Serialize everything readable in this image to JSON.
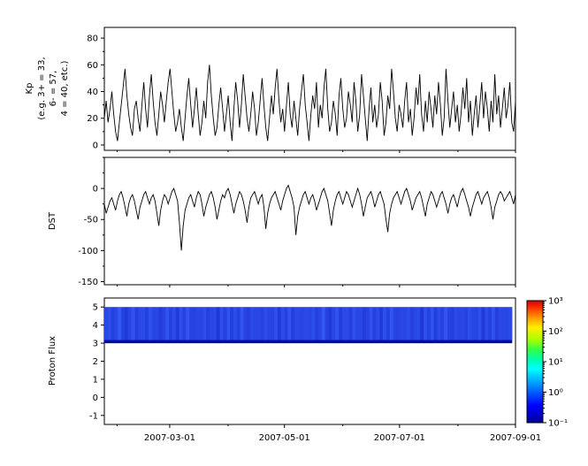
{
  "figure": {
    "background": "#ffffff",
    "axis_color": "#000000"
  },
  "x_axis": {
    "tick_labels": [
      "2007-03-01",
      "2007-05-01",
      "2007-07-01",
      "2007-09-01"
    ],
    "tick_positions": [
      0.159,
      0.438,
      0.718,
      1.0
    ],
    "minor_tick_positions": [
      0.031,
      0.301,
      0.58,
      0.86
    ],
    "range": [
      "2007-01-26",
      "2007-09-01"
    ]
  },
  "chart_data": [
    {
      "type": "line",
      "title": "",
      "ylabel": "Kp (e.g. 3+ = 33, 6- = 57, 4 = 40, etc.)",
      "ylabel_lines": [
        "Kp",
        "(e.g. 3+ = 33,",
        "6- = 57,",
        "4 = 40, etc.)"
      ],
      "ylim": [
        -4,
        88
      ],
      "yticks": [
        0,
        20,
        40,
        60,
        80
      ],
      "ytick_minor_step": 10,
      "line_color": "#000000",
      "grid": false,
      "values": [
        20,
        33,
        17,
        27,
        40,
        23,
        10,
        3,
        17,
        30,
        43,
        57,
        37,
        23,
        13,
        7,
        27,
        33,
        20,
        10,
        30,
        47,
        27,
        13,
        37,
        53,
        33,
        17,
        7,
        23,
        40,
        30,
        17,
        33,
        47,
        57,
        40,
        23,
        10,
        17,
        27,
        13,
        3,
        20,
        37,
        50,
        30,
        13,
        27,
        43,
        23,
        7,
        17,
        33,
        20,
        47,
        60,
        37,
        20,
        7,
        13,
        30,
        43,
        27,
        10,
        23,
        37,
        17,
        3,
        27,
        47,
        33,
        13,
        30,
        53,
        37,
        20,
        10,
        23,
        40,
        27,
        7,
        17,
        33,
        50,
        30,
        13,
        3,
        20,
        37,
        23,
        43,
        57,
        33,
        17,
        27,
        10,
        30,
        47,
        23,
        13,
        33,
        20,
        7,
        27,
        40,
        53,
        30,
        17,
        3,
        23,
        37,
        27,
        47,
        13,
        30,
        20,
        43,
        57,
        27,
        10,
        17,
        33,
        23,
        7,
        37,
        50,
        27,
        13,
        20,
        40,
        30,
        17,
        47,
        33,
        10,
        23,
        53,
        37,
        20,
        3,
        27,
        43,
        17,
        30,
        13,
        23,
        47,
        33,
        7,
        17,
        37,
        27,
        57,
        40,
        20,
        10,
        30,
        23,
        13,
        33,
        47,
        17,
        27,
        7,
        20,
        43,
        30,
        53,
        23,
        10,
        33,
        17,
        40,
        27,
        13,
        37,
        23,
        47,
        30,
        7,
        20,
        57,
        33,
        13,
        27,
        40,
        17,
        30,
        10,
        23,
        43,
        27,
        50,
        17,
        33,
        7,
        23,
        37,
        13,
        30,
        47,
        20,
        40,
        27,
        10,
        33,
        17,
        53,
        23,
        37,
        13,
        27,
        43,
        20,
        30,
        47,
        17,
        10,
        33
      ]
    },
    {
      "type": "line",
      "title": "",
      "ylabel": "DST",
      "ylim": [
        -155,
        50
      ],
      "yticks": [
        0,
        -50,
        -100,
        -150
      ],
      "ytick_minor_step": 25,
      "line_color": "#000000",
      "grid": false,
      "values": [
        -25,
        -40,
        -30,
        -20,
        -15,
        -25,
        -35,
        -20,
        -10,
        -5,
        -15,
        -30,
        -45,
        -25,
        -15,
        -10,
        -20,
        -35,
        -50,
        -30,
        -20,
        -10,
        -5,
        -15,
        -25,
        -15,
        -10,
        -20,
        -40,
        -60,
        -35,
        -20,
        -10,
        -15,
        -25,
        -15,
        -5,
        0,
        -10,
        -20,
        -55,
        -100,
        -60,
        -35,
        -25,
        -15,
        -10,
        -20,
        -30,
        -15,
        -5,
        -10,
        -25,
        -45,
        -30,
        -20,
        -10,
        -5,
        -15,
        -30,
        -50,
        -35,
        -20,
        -10,
        -15,
        -5,
        0,
        -10,
        -25,
        -40,
        -25,
        -15,
        -5,
        -10,
        -20,
        -35,
        -55,
        -30,
        -15,
        -10,
        -5,
        -15,
        -25,
        -15,
        -10,
        -30,
        -65,
        -40,
        -25,
        -15,
        -10,
        -5,
        -15,
        -25,
        -35,
        -20,
        -10,
        0,
        5,
        -5,
        -15,
        -30,
        -75,
        -45,
        -30,
        -20,
        -10,
        -5,
        -15,
        -25,
        -15,
        -10,
        -20,
        -35,
        -25,
        -15,
        -5,
        0,
        -10,
        -20,
        -40,
        -60,
        -35,
        -20,
        -10,
        -5,
        -15,
        -25,
        -15,
        -5,
        -10,
        -20,
        -30,
        -20,
        -10,
        0,
        -10,
        -25,
        -45,
        -30,
        -15,
        -10,
        -5,
        -15,
        -30,
        -20,
        -10,
        -5,
        -15,
        -25,
        -50,
        -70,
        -40,
        -25,
        -15,
        -10,
        -5,
        -15,
        -25,
        -15,
        -5,
        0,
        -10,
        -20,
        -35,
        -25,
        -15,
        -10,
        -5,
        -15,
        -30,
        -45,
        -25,
        -15,
        -5,
        -10,
        -20,
        -30,
        -20,
        -10,
        -5,
        -15,
        -25,
        -40,
        -25,
        -15,
        -10,
        -20,
        -30,
        -15,
        -5,
        0,
        -10,
        -20,
        -30,
        -45,
        -30,
        -20,
        -10,
        -5,
        -15,
        -25,
        -15,
        -10,
        -5,
        -15,
        -30,
        -50,
        -30,
        -20,
        -10,
        -5,
        -10,
        -20,
        -15,
        -10,
        -5,
        -15,
        -25,
        -10
      ]
    },
    {
      "type": "heatmap",
      "title": "",
      "ylabel": "Proton Flux",
      "ylim": [
        -1.5,
        5.5
      ],
      "yticks": [
        5,
        4,
        3,
        2,
        1,
        0,
        -1
      ],
      "band": {
        "y_min": 3.0,
        "y_max": 5.0,
        "flux_range": [
          0.1,
          1.0
        ],
        "base_color": "#2a3ce0",
        "bottom_edge_color": "#000d99",
        "stripe_shades": [
          0.5,
          0.7,
          0.4,
          0.6,
          0.8,
          0.5,
          0.3,
          0.6,
          0.7,
          0.45,
          0.55,
          0.65,
          0.4,
          0.75,
          0.5,
          0.6,
          0.35,
          0.55,
          0.7,
          0.5,
          0.6,
          0.4,
          0.65,
          0.5,
          0.75,
          0.55,
          0.45,
          0.6,
          0.5,
          0.7,
          0.4,
          0.6,
          0.55,
          0.35,
          0.65,
          0.5,
          0.7,
          0.45,
          0.6,
          0.5,
          0.75,
          0.55,
          0.4,
          0.65,
          0.5,
          0.6,
          0.45,
          0.7,
          0.5,
          0.55,
          0.65,
          0.4,
          0.6,
          0.5,
          0.7,
          0.45,
          0.55,
          0.6,
          0.5,
          0.65
        ]
      },
      "colorbar": {
        "scale": "log",
        "range": [
          0.1,
          1000
        ],
        "tick_labels": [
          "10³",
          "10²",
          "10¹",
          "10⁰",
          "10⁻¹"
        ],
        "gradient": [
          {
            "offset": 0.0,
            "color": "#d40000"
          },
          {
            "offset": 0.06,
            "color": "#ff3300"
          },
          {
            "offset": 0.14,
            "color": "#ff9900"
          },
          {
            "offset": 0.22,
            "color": "#ffee00"
          },
          {
            "offset": 0.32,
            "color": "#aaff00"
          },
          {
            "offset": 0.4,
            "color": "#33ff44"
          },
          {
            "offset": 0.48,
            "color": "#00ffaa"
          },
          {
            "offset": 0.56,
            "color": "#00ffff"
          },
          {
            "offset": 0.66,
            "color": "#00aaff"
          },
          {
            "offset": 0.76,
            "color": "#0055ff"
          },
          {
            "offset": 0.86,
            "color": "#0000ff"
          },
          {
            "offset": 1.0,
            "color": "#000099"
          }
        ]
      }
    }
  ]
}
